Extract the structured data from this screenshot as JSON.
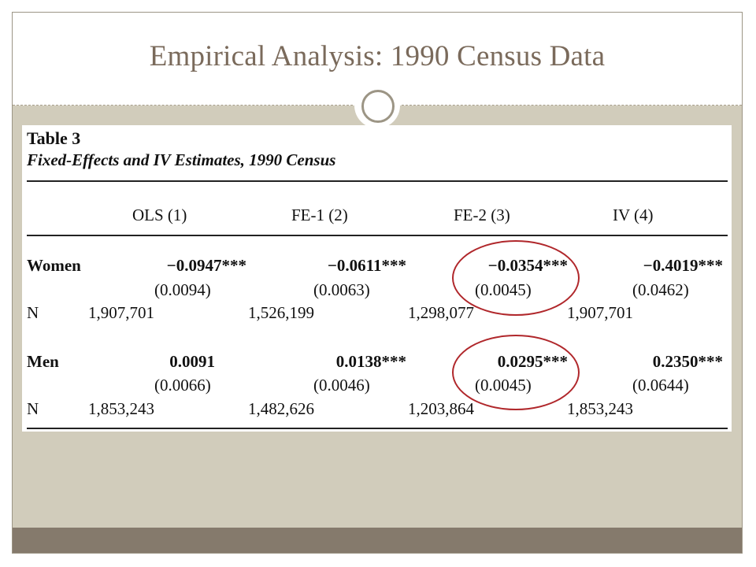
{
  "slide": {
    "title": "Empirical Analysis: 1990 Census Data"
  },
  "table": {
    "label": "Table 3",
    "caption": "Fixed-Effects and IV Estimates, 1990 Census",
    "columns": [
      "OLS (1)",
      "FE-1 (2)",
      "FE-2 (3)",
      "IV (4)"
    ],
    "women": {
      "label": "Women",
      "coef": [
        "−0.0947***",
        "−0.0611***",
        "−0.0354***",
        "−0.4019***"
      ],
      "se": [
        "(0.0094)",
        "(0.0063)",
        "(0.0045)",
        "(0.0462)"
      ],
      "n_label": "N",
      "n": [
        "1,907,701",
        "1,526,199",
        "1,298,077",
        "1,907,701"
      ]
    },
    "men": {
      "label": "Men",
      "coef": [
        "0.0091",
        "0.0138***",
        "0.0295***",
        "0.2350***"
      ],
      "se": [
        "(0.0066)",
        "(0.0046)",
        "(0.0045)",
        "(0.0644)"
      ],
      "n_label": "N",
      "n": [
        "1,853,243",
        "1,482,626",
        "1,203,864",
        "1,853,243"
      ]
    },
    "highlight_color": "#b0272b"
  }
}
